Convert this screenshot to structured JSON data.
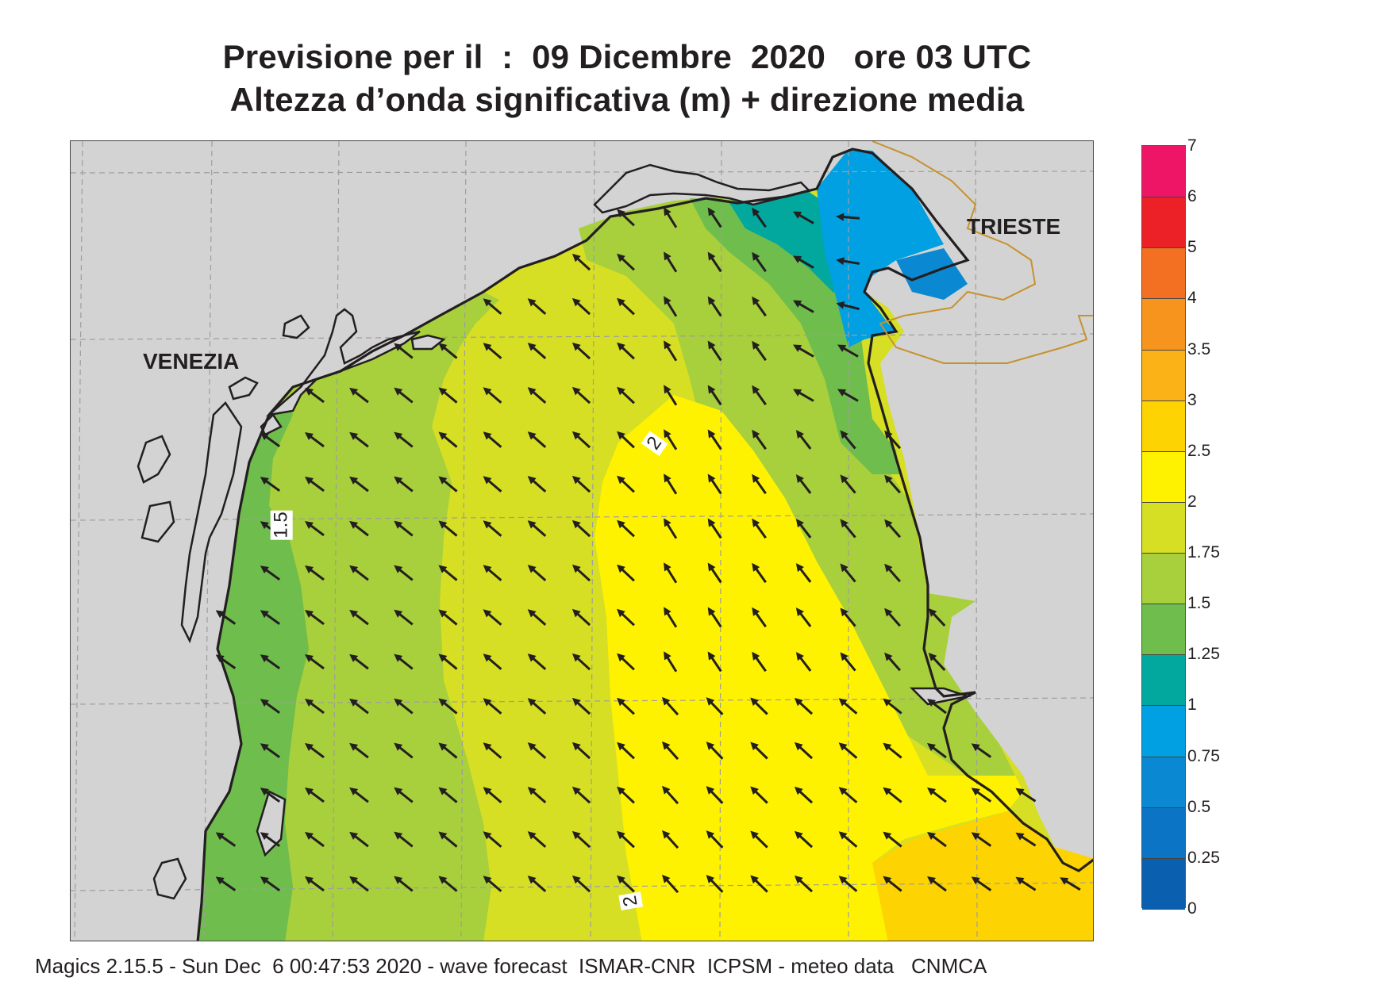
{
  "title_line1": "Previsione per il  :  09 Dicembre  2020   ore 03 UTC",
  "title_line2": "Altezza d’onda significativa (m) + direzione media",
  "cities": {
    "venezia": "VENEZIA",
    "trieste": "TRIESTE"
  },
  "contour_labels": [
    "1.5",
    "2",
    "2"
  ],
  "legend": {
    "labels": [
      "7",
      "6",
      "5",
      "4",
      "3.5",
      "3",
      "2.5",
      "2",
      "1.75",
      "1.5",
      "1.25",
      "1",
      "0.75",
      "0.5",
      "0.25",
      "0"
    ],
    "colors": [
      "#ee1566",
      "#ec2027",
      "#f36f21",
      "#f7941d",
      "#fbb217",
      "#fdd302",
      "#fff200",
      "#d6df23",
      "#a8cf3c",
      "#6fbd4c",
      "#02a89e",
      "#00a0e2",
      "#0a89d2",
      "#0b74c4",
      "#0a5fae"
    ]
  },
  "footer": "Magics 2.15.5 - Sun Dec  6 00:47:53 2020 - wave forecast  ISMAR-CNR  ICPSM - meteo data   CNMCA",
  "colors": {
    "land": "#d3d3d3",
    "coast": "#231f20",
    "border": "#c6922e",
    "arrow": "#231f20",
    "grid": "#9e9e9e"
  }
}
